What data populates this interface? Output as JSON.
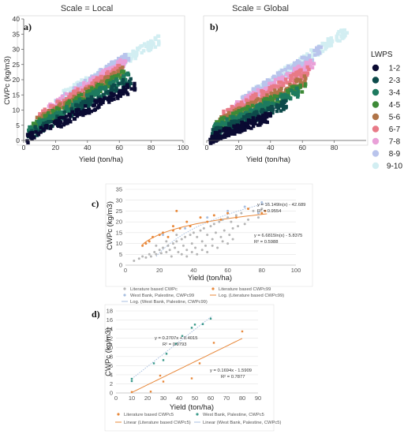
{
  "chart_data": [
    {
      "id": "a",
      "type": "heatmap",
      "panel_label": "a)",
      "title": "Scale = Local",
      "xlabel": "Yield (ton/ha)",
      "ylabel": "CWPc (kg/m3)",
      "xlim": [
        0,
        100
      ],
      "ylim": [
        0,
        40
      ],
      "xticks": [
        0,
        20,
        40,
        60,
        80,
        100
      ],
      "yticks": [
        0,
        5,
        10,
        15,
        20,
        25,
        30,
        35,
        40
      ],
      "legend_title": "LWPS",
      "legend": [
        "1-2",
        "2-3",
        "3-4",
        "4-5",
        "5-6",
        "6-7",
        "7-8",
        "8-9",
        "9-10"
      ],
      "legend_colors": [
        "#0a0a32",
        "#0d4a4a",
        "#1d7a5f",
        "#3d8a37",
        "#b07448",
        "#e87a87",
        "#e9a0d8",
        "#b9c4ec",
        "#d2eef2"
      ],
      "bands": [
        {
          "class": "1-2",
          "x": [
            2,
            70
          ],
          "y": [
            0.5,
            18
          ]
        },
        {
          "class": "2-3",
          "x": [
            2,
            68
          ],
          "y": [
            1.5,
            20
          ]
        },
        {
          "class": "3-4",
          "x": [
            3,
            66
          ],
          "y": [
            3,
            21
          ]
        },
        {
          "class": "4-5",
          "x": [
            5,
            64
          ],
          "y": [
            4.5,
            22
          ]
        },
        {
          "class": "5-6",
          "x": [
            8,
            62
          ],
          "y": [
            6,
            22.5
          ]
        },
        {
          "class": "6-7",
          "x": [
            10,
            62
          ],
          "y": [
            8,
            24
          ]
        },
        {
          "class": "7-8",
          "x": [
            15,
            64
          ],
          "y": [
            10,
            26
          ]
        },
        {
          "class": "8-9",
          "x": [
            20,
            66
          ],
          "y": [
            12,
            28
          ]
        },
        {
          "class": "9-10",
          "x": [
            25,
            85
          ],
          "y": [
            15,
            33
          ]
        }
      ]
    },
    {
      "id": "b",
      "type": "heatmap",
      "panel_label": "b)",
      "title": "Scale = Global",
      "xlabel": "Yield (ton/ha)",
      "ylabel": "",
      "xlim": [
        0,
        100
      ],
      "ylim": [
        0,
        40
      ],
      "xticks": [
        0,
        20,
        40,
        60,
        80
      ],
      "yticks": [],
      "bands": [
        {
          "class": "1-2",
          "x": [
            2,
            40
          ],
          "y": [
            0.5,
            8
          ]
        },
        {
          "class": "2-3",
          "x": [
            3,
            50
          ],
          "y": [
            2,
            12
          ]
        },
        {
          "class": "3-4",
          "x": [
            4,
            58
          ],
          "y": [
            3.5,
            16
          ]
        },
        {
          "class": "4-5",
          "x": [
            6,
            62
          ],
          "y": [
            5,
            18
          ]
        },
        {
          "class": "5-6",
          "x": [
            8,
            62
          ],
          "y": [
            6,
            20
          ]
        },
        {
          "class": "6-7",
          "x": [
            10,
            64
          ],
          "y": [
            8,
            23
          ]
        },
        {
          "class": "7-8",
          "x": [
            15,
            68
          ],
          "y": [
            10,
            26
          ]
        },
        {
          "class": "8-9",
          "x": [
            22,
            72
          ],
          "y": [
            13,
            30
          ]
        },
        {
          "class": "9-10",
          "x": [
            30,
            88
          ],
          "y": [
            16,
            36
          ]
        }
      ]
    },
    {
      "id": "c",
      "type": "scatter",
      "panel_label": "c)",
      "xlabel": "Yield (ton/ha)",
      "ylabel": "CWPc (kg/m3)",
      "xlim": [
        0,
        100
      ],
      "ylim": [
        0,
        35
      ],
      "xticks": [
        0,
        20,
        40,
        60,
        80,
        100
      ],
      "yticks": [
        0,
        5,
        10,
        15,
        20,
        25,
        30,
        35
      ],
      "series": [
        {
          "name": "Literature based CWPc",
          "color": "#b5b5b5",
          "points": [
            [
              5,
              2
            ],
            [
              8,
              3
            ],
            [
              10,
              4
            ],
            [
              12,
              3.5
            ],
            [
              14,
              5
            ],
            [
              15,
              4
            ],
            [
              17,
              6
            ],
            [
              18,
              5
            ],
            [
              20,
              7
            ],
            [
              21,
              5.5
            ],
            [
              22,
              8
            ],
            [
              24,
              6
            ],
            [
              25,
              9
            ],
            [
              26,
              7
            ],
            [
              28,
              10
            ],
            [
              29,
              8
            ],
            [
              30,
              11
            ],
            [
              31,
              6
            ],
            [
              33,
              12
            ],
            [
              34,
              9
            ],
            [
              35,
              13
            ],
            [
              36,
              7
            ],
            [
              38,
              14
            ],
            [
              39,
              10
            ],
            [
              40,
              15
            ],
            [
              41,
              8
            ],
            [
              42,
              13
            ],
            [
              44,
              16
            ],
            [
              45,
              11
            ],
            [
              46,
              17
            ],
            [
              47,
              9
            ],
            [
              48,
              14
            ],
            [
              50,
              18
            ],
            [
              51,
              12
            ],
            [
              52,
              19
            ],
            [
              53,
              15
            ],
            [
              55,
              20
            ],
            [
              56,
              13
            ],
            [
              57,
              21
            ],
            [
              58,
              16
            ],
            [
              60,
              22
            ],
            [
              61,
              14
            ],
            [
              62,
              20
            ],
            [
              63,
              17
            ],
            [
              65,
              23
            ],
            [
              66,
              18
            ],
            [
              68,
              24
            ],
            [
              70,
              19
            ],
            [
              72,
              21
            ],
            [
              75,
              25
            ],
            [
              78,
              22
            ],
            [
              80,
              26
            ],
            [
              18,
              9
            ],
            [
              24,
              11
            ],
            [
              30,
              14
            ],
            [
              36,
              4
            ],
            [
              42,
              5
            ],
            [
              48,
              6
            ],
            [
              54,
              8
            ],
            [
              60,
              10
            ],
            [
              27,
              4
            ],
            [
              33,
              5
            ],
            [
              39,
              6
            ],
            [
              45,
              7
            ],
            [
              51,
              9
            ],
            [
              57,
              11
            ],
            [
              63,
              12
            ]
          ]
        },
        {
          "name": "Literature based CWPc99",
          "color": "#e8883a",
          "points": [
            [
              10,
              9
            ],
            [
              12,
              10
            ],
            [
              14,
              11
            ],
            [
              16,
              13
            ],
            [
              20,
              14
            ],
            [
              22,
              15
            ],
            [
              25,
              13
            ],
            [
              28,
              18
            ],
            [
              30,
              25
            ],
            [
              32,
              17
            ],
            [
              36,
              20
            ],
            [
              38,
              18
            ],
            [
              44,
              22
            ],
            [
              48,
              20
            ],
            [
              52,
              23
            ],
            [
              56,
              21
            ],
            [
              60,
              24
            ],
            [
              65,
              22
            ],
            [
              72,
              26
            ],
            [
              80,
              24
            ],
            [
              82,
              25
            ],
            [
              28,
              16
            ]
          ]
        },
        {
          "name": "West Bank, Palestine, CWPc99",
          "color": "#a8bfe0",
          "points": [
            [
              22,
              14
            ],
            [
              35,
              17
            ],
            [
              48,
              22
            ],
            [
              60,
              25
            ],
            [
              70,
              27
            ],
            [
              78,
              24
            ],
            [
              80,
              29
            ]
          ]
        }
      ],
      "fits": [
        {
          "name": "Log. (Literature based CWPc99)",
          "equation": "y = 6.6815ln(x) - 5.8375",
          "r2": "R² = 0.5988",
          "a": 6.6815,
          "b": -5.8375,
          "kind": "log",
          "x_range": [
            10,
            83
          ],
          "color": "#e8883a"
        },
        {
          "name": "Log. (West Bank, Palestine, CWPc99)",
          "equation": "y = 16.149ln(x) - 42.689",
          "r2": "R² = 0.9554",
          "a": 16.149,
          "b": -42.689,
          "kind": "log",
          "x_range": [
            18,
            84
          ],
          "color": "#a8bfe0"
        }
      ],
      "legend": [
        "Literature based CWPc",
        "Literature based CWPc99",
        "West Bank, Palestine, CWPc99",
        "Log. (Literature based CWPc99)",
        "Log. (West Bank, Palestine, CWPc99)"
      ]
    },
    {
      "id": "d",
      "type": "scatter",
      "panel_label": "d)",
      "xlabel": "Yield (ton/ha)",
      "ylabel": "CWPc (kg/m3)",
      "xlim": [
        0,
        90
      ],
      "ylim": [
        0,
        18
      ],
      "xticks": [
        0,
        10,
        20,
        30,
        40,
        50,
        60,
        70,
        80,
        90
      ],
      "yticks": [
        0,
        2,
        4,
        6,
        8,
        10,
        12,
        14,
        16,
        18
      ],
      "series": [
        {
          "name": "Literature based CWPc5",
          "color": "#e8883a",
          "points": [
            [
              10,
              0.2
            ],
            [
              22,
              0.3
            ],
            [
              28,
              3.8
            ],
            [
              30,
              2.5
            ],
            [
              48,
              3.2
            ],
            [
              53,
              6.5
            ],
            [
              62,
              11
            ],
            [
              80,
              13.5
            ]
          ]
        },
        {
          "name": "West Bank, Palestine, CWPc5",
          "color": "#3a9a8a",
          "points": [
            [
              10,
              2.6
            ],
            [
              10,
              3.1
            ],
            [
              24,
              6.5
            ],
            [
              30,
              7.2
            ],
            [
              32,
              8.6
            ],
            [
              38,
              10.8
            ],
            [
              42,
              12.5
            ],
            [
              48,
              14.3
            ],
            [
              50,
              15.0
            ],
            [
              55,
              15.1
            ],
            [
              60,
              16.3
            ]
          ]
        }
      ],
      "fits": [
        {
          "name": "Linear (Literature based CWPc5)",
          "equation": "y = 0.1694x - 1.5909",
          "r2": "R² = 0.7877",
          "a": 0.1694,
          "b": -1.5909,
          "kind": "linear",
          "x_range": [
            10,
            80
          ],
          "color": "#e8883a"
        },
        {
          "name": "Linear (West Bank, Palestine, CWPc5)",
          "equation": "y = 0.2707x + 0.4015",
          "r2": "R² = 0.9793",
          "a": 0.2707,
          "b": 0.4015,
          "kind": "linear",
          "x_range": [
            10,
            61
          ],
          "color": "#a8bfe0"
        }
      ],
      "legend": [
        "Literature based CWPc5",
        "West Bank, Palestine, CWPc5",
        "Linear (Literature based CWPc5)",
        "Linear (West Bank, Palestine, CWPc5)"
      ]
    }
  ]
}
